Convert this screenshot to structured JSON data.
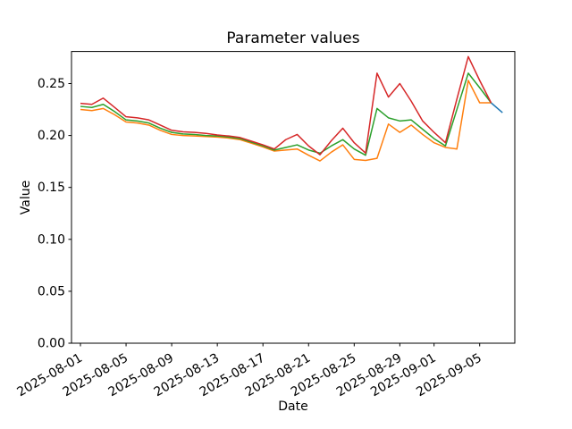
{
  "chart_data": {
    "type": "line",
    "title": "Parameter values",
    "xlabel": "Date",
    "ylabel": "Value",
    "grid": false,
    "legend": "none",
    "ylim": [
      0.0,
      0.2815
    ],
    "y_ticks": [
      0.0,
      0.05,
      0.1,
      0.15,
      0.2,
      0.25
    ],
    "y_tick_labels": [
      "0.00",
      "0.05",
      "0.10",
      "0.15",
      "0.20",
      "0.25"
    ],
    "x_tick_labels": [
      "2025-08-01",
      "2025-08-05",
      "2025-08-09",
      "2025-08-13",
      "2025-08-17",
      "2025-08-21",
      "2025-08-25",
      "2025-08-29",
      "2025-09-01",
      "2025-09-05"
    ],
    "x_tick_day_index": [
      0,
      4,
      8,
      12,
      16,
      20,
      24,
      28,
      31,
      35
    ],
    "dates": [
      "2025-08-01",
      "2025-08-02",
      "2025-08-03",
      "2025-08-04",
      "2025-08-05",
      "2025-08-06",
      "2025-08-07",
      "2025-08-08",
      "2025-08-09",
      "2025-08-10",
      "2025-08-11",
      "2025-08-12",
      "2025-08-13",
      "2025-08-14",
      "2025-08-15",
      "2025-08-16",
      "2025-08-17",
      "2025-08-18",
      "2025-08-19",
      "2025-08-20",
      "2025-08-21",
      "2025-08-22",
      "2025-08-23",
      "2025-08-24",
      "2025-08-25",
      "2025-08-26",
      "2025-08-27",
      "2025-08-28",
      "2025-08-29",
      "2025-08-30",
      "2025-08-31",
      "2025-09-01",
      "2025-09-02",
      "2025-09-03",
      "2025-09-04",
      "2025-09-05",
      "2025-09-06",
      "2025-09-07"
    ],
    "series": [
      {
        "name": "blue",
        "color": "#1f77b4",
        "start_index": 36,
        "values": [
          0.2315,
          0.222
        ]
      },
      {
        "name": "orange",
        "color": "#ff7f0e",
        "start_index": 0,
        "values": [
          0.225,
          0.224,
          0.226,
          0.22,
          0.213,
          0.212,
          0.21,
          0.205,
          0.201,
          0.2,
          0.1995,
          0.199,
          0.1985,
          0.1975,
          0.196,
          0.1925,
          0.189,
          0.185,
          0.186,
          0.187,
          0.181,
          0.1755,
          0.184,
          0.191,
          0.177,
          0.176,
          0.178,
          0.211,
          0.203,
          0.21,
          0.201,
          0.193,
          0.1885,
          0.187,
          0.253,
          0.2315,
          0.2315
        ]
      },
      {
        "name": "green",
        "color": "#2ca02c",
        "start_index": 0,
        "values": [
          0.228,
          0.227,
          0.23,
          0.223,
          0.215,
          0.214,
          0.212,
          0.207,
          0.203,
          0.2015,
          0.201,
          0.2,
          0.1995,
          0.1985,
          0.197,
          0.1935,
          0.19,
          0.186,
          0.1885,
          0.191,
          0.186,
          0.183,
          0.19,
          0.196,
          0.187,
          0.181,
          0.226,
          0.217,
          0.214,
          0.215,
          0.206,
          0.197,
          0.19,
          0.225,
          0.26,
          0.246,
          0.2315
        ]
      },
      {
        "name": "red",
        "color": "#d62728",
        "start_index": 0,
        "values": [
          0.231,
          0.23,
          0.236,
          0.227,
          0.218,
          0.217,
          0.215,
          0.21,
          0.205,
          0.2035,
          0.203,
          0.202,
          0.2005,
          0.1995,
          0.198,
          0.1945,
          0.191,
          0.187,
          0.196,
          0.201,
          0.19,
          0.1815,
          0.195,
          0.207,
          0.193,
          0.183,
          0.26,
          0.237,
          0.25,
          0.233,
          0.214,
          0.203,
          0.193,
          0.235,
          0.276,
          0.253,
          0.2315
        ]
      }
    ]
  }
}
